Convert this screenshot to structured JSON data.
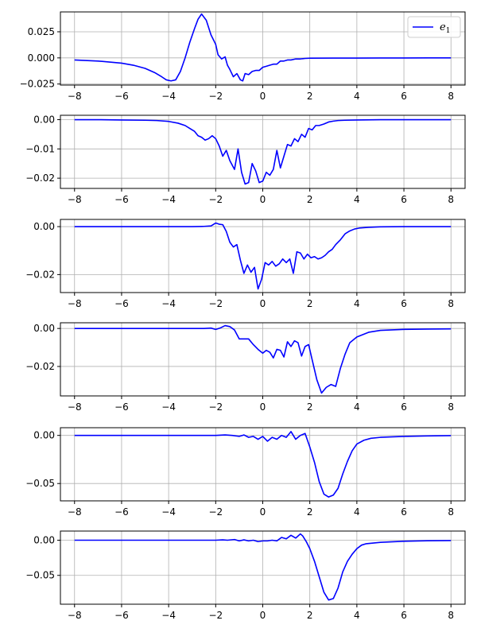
{
  "chart_data": [
    {
      "type": "line",
      "xlim": [
        -8.6,
        8.6
      ],
      "ylim": [
        -0.026,
        0.044
      ],
      "grid": true,
      "xticks": [
        -8,
        -6,
        -4,
        -2,
        0,
        2,
        4,
        6,
        8
      ],
      "xtick_labels": [
        "−8",
        "−6",
        "−4",
        "−2",
        "0",
        "2",
        "4",
        "6",
        "8"
      ],
      "yticks": [
        0.025,
        0.0,
        -0.025
      ],
      "ytick_labels": [
        "0.025",
        "0.000",
        "−0.025"
      ],
      "legend": {
        "placement": "top-right",
        "label": "e",
        "subscript": "1"
      },
      "series": [
        {
          "name": "e₁",
          "color": "#0000ff",
          "x": [
            -8,
            -7,
            -6,
            -5.5,
            -5,
            -4.6,
            -4.3,
            -4.1,
            -3.9,
            -3.7,
            -3.5,
            -3.3,
            -3.1,
            -2.9,
            -2.75,
            -2.6,
            -2.4,
            -2.2,
            -2.0,
            -1.9,
            -1.75,
            -1.6,
            -1.5,
            -1.4,
            -1.25,
            -1.1,
            -0.95,
            -0.85,
            -0.75,
            -0.6,
            -0.45,
            -0.3,
            -0.15,
            0,
            0.15,
            0.3,
            0.45,
            0.6,
            0.75,
            0.9,
            1.05,
            1.2,
            1.4,
            1.6,
            1.8,
            2.0,
            3,
            4,
            5,
            6,
            7,
            8
          ],
          "y": [
            -0.002,
            -0.003,
            -0.005,
            -0.007,
            -0.01,
            -0.014,
            -0.018,
            -0.021,
            -0.022,
            -0.021,
            -0.013,
            0.0,
            0.015,
            0.028,
            0.037,
            0.042,
            0.036,
            0.022,
            0.013,
            0.003,
            -0.001,
            0.001,
            -0.007,
            -0.011,
            -0.018,
            -0.015,
            -0.021,
            -0.022,
            -0.015,
            -0.016,
            -0.013,
            -0.012,
            -0.012,
            -0.009,
            -0.008,
            -0.007,
            -0.006,
            -0.006,
            -0.003,
            -0.003,
            -0.002,
            -0.002,
            -0.001,
            -0.001,
            -0.0005,
            -0.0003,
            -0.0002,
            -0.0002,
            -0.0001,
            -0.0001,
            0.0,
            0.0
          ]
        }
      ]
    },
    {
      "type": "line",
      "xlim": [
        -8.6,
        8.6
      ],
      "ylim": [
        -0.0235,
        0.0015
      ],
      "grid": true,
      "xticks": [
        -8,
        -6,
        -4,
        -2,
        0,
        2,
        4,
        6,
        8
      ],
      "xtick_labels": [
        "−8",
        "−6",
        "−4",
        "−2",
        "0",
        "2",
        "4",
        "6",
        "8"
      ],
      "yticks": [
        0.0,
        -0.01,
        -0.02
      ],
      "ytick_labels": [
        "0.00",
        "−0.01",
        "−0.02"
      ],
      "series": [
        {
          "color": "#0000ff",
          "x": [
            -8,
            -7,
            -6,
            -5,
            -4.5,
            -4,
            -3.6,
            -3.3,
            -3.1,
            -2.9,
            -2.75,
            -2.6,
            -2.45,
            -2.3,
            -2.15,
            -2.0,
            -1.85,
            -1.7,
            -1.55,
            -1.4,
            -1.2,
            -1.05,
            -0.9,
            -0.75,
            -0.6,
            -0.45,
            -0.3,
            -0.15,
            0,
            0.15,
            0.3,
            0.45,
            0.6,
            0.75,
            0.9,
            1.05,
            1.2,
            1.35,
            1.5,
            1.65,
            1.8,
            1.95,
            2.1,
            2.25,
            2.4,
            2.6,
            2.8,
            3.0,
            3.2,
            3.5,
            4,
            5,
            6,
            7,
            8
          ],
          "y": [
            0.0,
            0.0,
            -0.0001,
            -0.0002,
            -0.0003,
            -0.0006,
            -0.0012,
            -0.002,
            -0.003,
            -0.004,
            -0.0055,
            -0.006,
            -0.007,
            -0.0065,
            -0.0055,
            -0.0065,
            -0.009,
            -0.0125,
            -0.0105,
            -0.014,
            -0.017,
            -0.01,
            -0.018,
            -0.022,
            -0.0215,
            -0.015,
            -0.0175,
            -0.0215,
            -0.021,
            -0.018,
            -0.019,
            -0.017,
            -0.0105,
            -0.0165,
            -0.0125,
            -0.0085,
            -0.009,
            -0.0065,
            -0.0075,
            -0.005,
            -0.006,
            -0.003,
            -0.0035,
            -0.002,
            -0.002,
            -0.0015,
            -0.0008,
            -0.0005,
            -0.0003,
            -0.0002,
            -0.0001,
            0.0,
            0.0,
            0.0,
            0.0
          ]
        }
      ]
    },
    {
      "type": "line",
      "xlim": [
        -8.6,
        8.6
      ],
      "ylim": [
        -0.0275,
        0.003
      ],
      "grid": true,
      "xticks": [
        -8,
        -6,
        -4,
        -2,
        0,
        2,
        4,
        6,
        8
      ],
      "xtick_labels": [
        "−8",
        "−6",
        "−4",
        "−2",
        "0",
        "2",
        "4",
        "6",
        "8"
      ],
      "yticks": [
        0.0,
        -0.02
      ],
      "ytick_labels": [
        "0.00",
        "−0.02"
      ],
      "series": [
        {
          "color": "#0000ff",
          "x": [
            -8,
            -6,
            -4,
            -3,
            -2.5,
            -2.2,
            -2.0,
            -1.85,
            -1.7,
            -1.55,
            -1.4,
            -1.25,
            -1.1,
            -0.95,
            -0.8,
            -0.65,
            -0.5,
            -0.35,
            -0.2,
            -0.05,
            0.1,
            0.25,
            0.4,
            0.55,
            0.7,
            0.85,
            1.0,
            1.15,
            1.3,
            1.45,
            1.6,
            1.75,
            1.9,
            2.05,
            2.2,
            2.35,
            2.5,
            2.65,
            2.8,
            2.95,
            3.1,
            3.3,
            3.5,
            3.7,
            3.9,
            4.1,
            4.5,
            5,
            6,
            7,
            8
          ],
          "y": [
            0.0,
            0.0,
            0.0,
            0.0,
            0.0001,
            0.0003,
            0.0015,
            0.001,
            0.0008,
            -0.002,
            -0.0065,
            -0.0085,
            -0.0075,
            -0.014,
            -0.0195,
            -0.016,
            -0.019,
            -0.017,
            -0.026,
            -0.022,
            -0.015,
            -0.016,
            -0.0145,
            -0.0165,
            -0.0155,
            -0.0135,
            -0.015,
            -0.0135,
            -0.0195,
            -0.0105,
            -0.011,
            -0.0135,
            -0.0115,
            -0.013,
            -0.0125,
            -0.0135,
            -0.013,
            -0.012,
            -0.0105,
            -0.0095,
            -0.0075,
            -0.0055,
            -0.003,
            -0.0018,
            -0.001,
            -0.0006,
            -0.0003,
            -0.0001,
            0.0,
            0.0,
            0.0
          ]
        }
      ]
    },
    {
      "type": "line",
      "xlim": [
        -8.6,
        8.6
      ],
      "ylim": [
        -0.0355,
        0.003
      ],
      "grid": true,
      "xticks": [
        -8,
        -6,
        -4,
        -2,
        0,
        2,
        4,
        6,
        8
      ],
      "xtick_labels": [
        "−8",
        "−6",
        "−4",
        "−2",
        "0",
        "2",
        "4",
        "6",
        "8"
      ],
      "yticks": [
        0.0,
        -0.02
      ],
      "ytick_labels": [
        "0.00",
        "−0.02"
      ],
      "series": [
        {
          "color": "#0000ff",
          "x": [
            -8,
            -6,
            -4,
            -3,
            -2.5,
            -2.2,
            -2.0,
            -1.8,
            -1.6,
            -1.4,
            -1.2,
            -1.0,
            -0.8,
            -0.6,
            -0.4,
            -0.2,
            0,
            0.15,
            0.3,
            0.45,
            0.6,
            0.75,
            0.9,
            1.05,
            1.2,
            1.35,
            1.5,
            1.65,
            1.8,
            1.95,
            2.1,
            2.3,
            2.5,
            2.7,
            2.9,
            3.1,
            3.3,
            3.5,
            3.7,
            4.0,
            4.5,
            5,
            6,
            7,
            8
          ],
          "y": [
            0.0,
            0.0,
            0.0,
            0.0,
            0.0,
            0.0002,
            -0.0005,
            0.0003,
            0.0015,
            0.001,
            -0.0008,
            -0.0055,
            -0.0055,
            -0.0055,
            -0.0085,
            -0.011,
            -0.013,
            -0.0115,
            -0.0125,
            -0.0155,
            -0.011,
            -0.0115,
            -0.015,
            -0.007,
            -0.0095,
            -0.0065,
            -0.0075,
            -0.0145,
            -0.0095,
            -0.0085,
            -0.0165,
            -0.027,
            -0.034,
            -0.031,
            -0.0295,
            -0.0305,
            -0.021,
            -0.0135,
            -0.0075,
            -0.0045,
            -0.002,
            -0.001,
            -0.0005,
            -0.0003,
            -0.0002
          ]
        }
      ]
    },
    {
      "type": "line",
      "xlim": [
        -8.6,
        8.6
      ],
      "ylim": [
        -0.068,
        0.008
      ],
      "grid": true,
      "xticks": [
        -8,
        -6,
        -4,
        -2,
        0,
        2,
        4,
        6,
        8
      ],
      "xtick_labels": [
        "−8",
        "−6",
        "−4",
        "−2",
        "0",
        "2",
        "4",
        "6",
        "8"
      ],
      "yticks": [
        0.0,
        -0.05
      ],
      "ytick_labels": [
        "0.00",
        "−0.05"
      ],
      "series": [
        {
          "color": "#0000ff",
          "x": [
            -8,
            -6,
            -4,
            -2.5,
            -2.0,
            -1.6,
            -1.3,
            -1.0,
            -0.8,
            -0.6,
            -0.4,
            -0.2,
            0,
            0.2,
            0.4,
            0.6,
            0.8,
            1.0,
            1.2,
            1.4,
            1.6,
            1.8,
            2.0,
            2.2,
            2.4,
            2.6,
            2.8,
            3.0,
            3.2,
            3.4,
            3.6,
            3.8,
            4.0,
            4.3,
            4.6,
            5,
            6,
            7,
            8
          ],
          "y": [
            0.0,
            0.0,
            0.0,
            0.0,
            0.0,
            0.0005,
            0.0,
            -0.001,
            0.0005,
            -0.002,
            -0.001,
            -0.004,
            -0.001,
            -0.006,
            -0.002,
            -0.004,
            0.0,
            -0.002,
            0.004,
            -0.004,
            0.0,
            0.002,
            -0.012,
            -0.028,
            -0.048,
            -0.061,
            -0.064,
            -0.062,
            -0.055,
            -0.04,
            -0.027,
            -0.016,
            -0.009,
            -0.005,
            -0.003,
            -0.002,
            -0.001,
            -0.0005,
            -0.0002
          ]
        }
      ]
    },
    {
      "type": "line",
      "xlim": [
        -8.6,
        8.6
      ],
      "ylim": [
        -0.091,
        0.013
      ],
      "grid": true,
      "xticks": [
        -8,
        -6,
        -4,
        -2,
        0,
        2,
        4,
        6,
        8
      ],
      "xtick_labels": [
        "−8",
        "−6",
        "−4",
        "−2",
        "0",
        "2",
        "4",
        "6",
        "8"
      ],
      "yticks": [
        0.0,
        -0.05
      ],
      "ytick_labels": [
        "0.00",
        "−0.05"
      ],
      "series": [
        {
          "color": "#0000ff",
          "x": [
            -8,
            -6,
            -4,
            -2.5,
            -2,
            -1.7,
            -1.5,
            -1.2,
            -1.0,
            -0.8,
            -0.6,
            -0.4,
            -0.2,
            0,
            0.2,
            0.4,
            0.6,
            0.8,
            1.0,
            1.2,
            1.4,
            1.6,
            1.7,
            1.85,
            2.0,
            2.2,
            2.4,
            2.6,
            2.8,
            3.0,
            3.2,
            3.4,
            3.6,
            3.8,
            4.0,
            4.2,
            4.4,
            4.7,
            5,
            6,
            7,
            8
          ],
          "y": [
            0.0,
            0.0,
            0.0,
            0.0,
            0.0,
            0.0005,
            0.0,
            0.001,
            -0.001,
            0.0005,
            -0.001,
            0.0,
            -0.002,
            -0.001,
            -0.001,
            0.0,
            -0.001,
            0.004,
            0.002,
            0.007,
            0.003,
            0.009,
            0.006,
            -0.002,
            -0.012,
            -0.03,
            -0.052,
            -0.074,
            -0.085,
            -0.083,
            -0.068,
            -0.045,
            -0.03,
            -0.02,
            -0.012,
            -0.007,
            -0.005,
            -0.004,
            -0.003,
            -0.0015,
            -0.0008,
            -0.0005
          ]
        }
      ]
    }
  ]
}
